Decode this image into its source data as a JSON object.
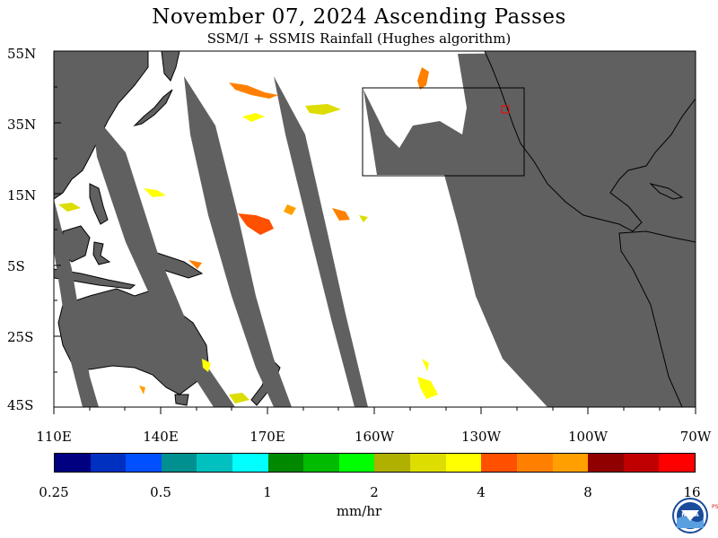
{
  "title": "November 07, 2024  Ascending Passes",
  "subtitle": "SSM/I + SSMIS Rainfall (Hughes algorithm)",
  "lat_labels": [
    "55N",
    "35N",
    "15N",
    "5S",
    "25S",
    "45S"
  ],
  "lon_labels": [
    "110E",
    "140E",
    "170E",
    "160W",
    "130W",
    "100W",
    "70W"
  ],
  "colorbar": {
    "colors": [
      "#000080",
      "#0030c0",
      "#0050ff",
      "#009090",
      "#00c0c0",
      "#00ffff",
      "#008800",
      "#00bb00",
      "#00ff00",
      "#b0b000",
      "#dddd00",
      "#ffff00",
      "#ff5000",
      "#ff8000",
      "#ffa000",
      "#900000",
      "#c00000",
      "#ff0000"
    ],
    "tick_labels": [
      "0.25",
      "0.5",
      "1",
      "2",
      "4",
      "8",
      "16"
    ],
    "units": "mm/hr"
  },
  "map": {
    "land_color": "#606060",
    "ocean_color": "#ffffff",
    "region_box": "black rectangle over northeast Pacific",
    "marker": "red small square near California coast"
  },
  "logo": {
    "text": "NOAA",
    "side_text": "PSL"
  }
}
